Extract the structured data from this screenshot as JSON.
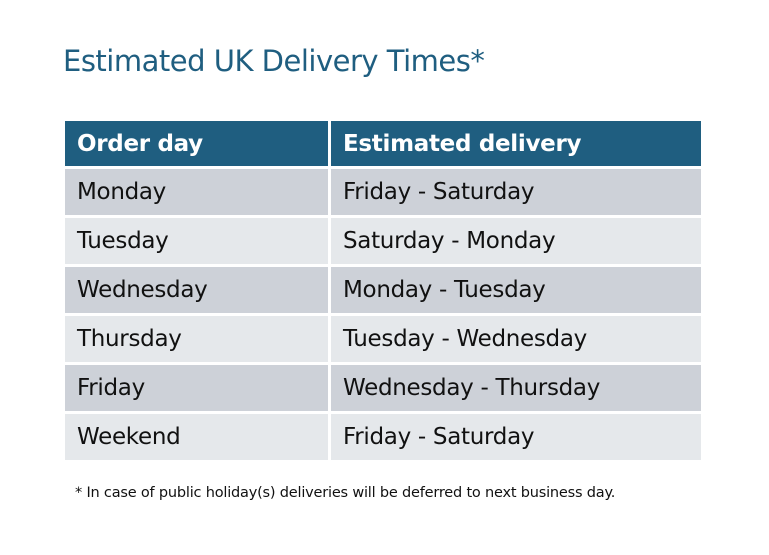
{
  "title": "Estimated UK Delivery Times*",
  "table": {
    "headers": [
      "Order day",
      "Estimated delivery"
    ],
    "rows": [
      [
        "Monday",
        "Friday - Saturday"
      ],
      [
        "Tuesday",
        "Saturday - Monday"
      ],
      [
        "Wednesday",
        "Monday - Tuesday"
      ],
      [
        "Thursday",
        "Tuesday - Wednesday"
      ],
      [
        "Friday",
        "Wednesday - Thursday"
      ],
      [
        "Weekend",
        "Friday - Saturday"
      ]
    ]
  },
  "footnote": "* In case of public holiday(s) deliveries will be deferred to next business day.",
  "colors": {
    "accent": "#1f5e80",
    "row_odd": "#cdd1d8",
    "row_even": "#e5e8eb"
  }
}
